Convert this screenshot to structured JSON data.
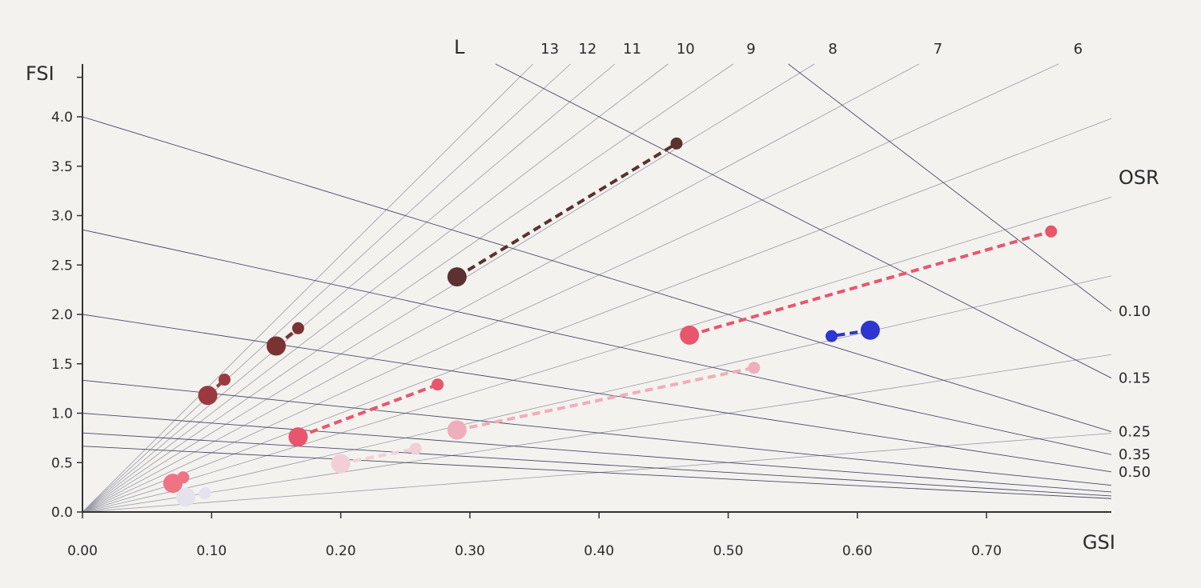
{
  "chart_data": {
    "type": "scatter",
    "title": "",
    "xlabel": "GSI",
    "ylabel": "FSI",
    "xlim": [
      0,
      0.8
    ],
    "ylim": [
      0,
      4.4
    ],
    "x_ticks": [
      "0.00",
      "0.10",
      "0.20",
      "0.30",
      "0.40",
      "0.50",
      "0.60",
      "0.70"
    ],
    "y_ticks": [
      "0.0",
      "0.5",
      "1.0",
      "1.5",
      "2.0",
      "2.5",
      "3.0",
      "3.5",
      "4.0"
    ],
    "grid": false,
    "l_title": "L",
    "l_lines": [
      "13",
      "12",
      "11",
      "10",
      "9",
      "8",
      "7",
      "6",
      "5",
      "4",
      "3",
      "2",
      "1"
    ],
    "l_labels_shown": [
      "13",
      "12",
      "11",
      "10",
      "9",
      "8",
      "7",
      "6"
    ],
    "osr_title": "OSR",
    "osr_lines": [
      {
        "value": 0.1,
        "label": "0.10"
      },
      {
        "value": 0.15,
        "label": "0.15"
      },
      {
        "value": 0.25,
        "label": "0.25"
      },
      {
        "value": 0.35,
        "label": "0.35"
      },
      {
        "value": 0.5,
        "label": "0.50"
      },
      {
        "value": 0.75,
        "label": ""
      },
      {
        "value": 1.0,
        "label": ""
      },
      {
        "value": 1.25,
        "label": ""
      },
      {
        "value": 1.5,
        "label": ""
      }
    ],
    "series": [
      {
        "color": "#5c3131",
        "points": [
          {
            "x": 0.29,
            "y": 2.38
          },
          {
            "x": 0.46,
            "y": 3.73
          }
        ]
      },
      {
        "color": "#7a3232",
        "points": [
          {
            "x": 0.15,
            "y": 1.68
          },
          {
            "x": 0.167,
            "y": 1.86
          }
        ]
      },
      {
        "color": "#9a3a3e",
        "points": [
          {
            "x": 0.097,
            "y": 1.18
          },
          {
            "x": 0.11,
            "y": 1.34
          }
        ]
      },
      {
        "color": "#e8566d",
        "points": [
          {
            "x": 0.47,
            "y": 1.79
          },
          {
            "x": 0.75,
            "y": 2.84
          }
        ]
      },
      {
        "color": "#e8566d",
        "points": [
          {
            "x": 0.167,
            "y": 0.76
          },
          {
            "x": 0.275,
            "y": 1.29
          }
        ]
      },
      {
        "color": "#ef7384",
        "points": [
          {
            "x": 0.07,
            "y": 0.29
          },
          {
            "x": 0.078,
            "y": 0.35
          }
        ]
      },
      {
        "color": "#f0adbb",
        "points": [
          {
            "x": 0.29,
            "y": 0.83
          },
          {
            "x": 0.52,
            "y": 1.46
          }
        ]
      },
      {
        "color": "#f2cfd6",
        "points": [
          {
            "x": 0.2,
            "y": 0.49
          },
          {
            "x": 0.258,
            "y": 0.64
          }
        ]
      },
      {
        "color": "#e4e2ec",
        "points": [
          {
            "x": 0.08,
            "y": 0.15
          },
          {
            "x": 0.095,
            "y": 0.19
          }
        ]
      },
      {
        "color": "#2f35cf",
        "points": [
          {
            "x": 0.61,
            "y": 1.84
          },
          {
            "x": 0.58,
            "y": 1.78
          }
        ]
      }
    ]
  }
}
